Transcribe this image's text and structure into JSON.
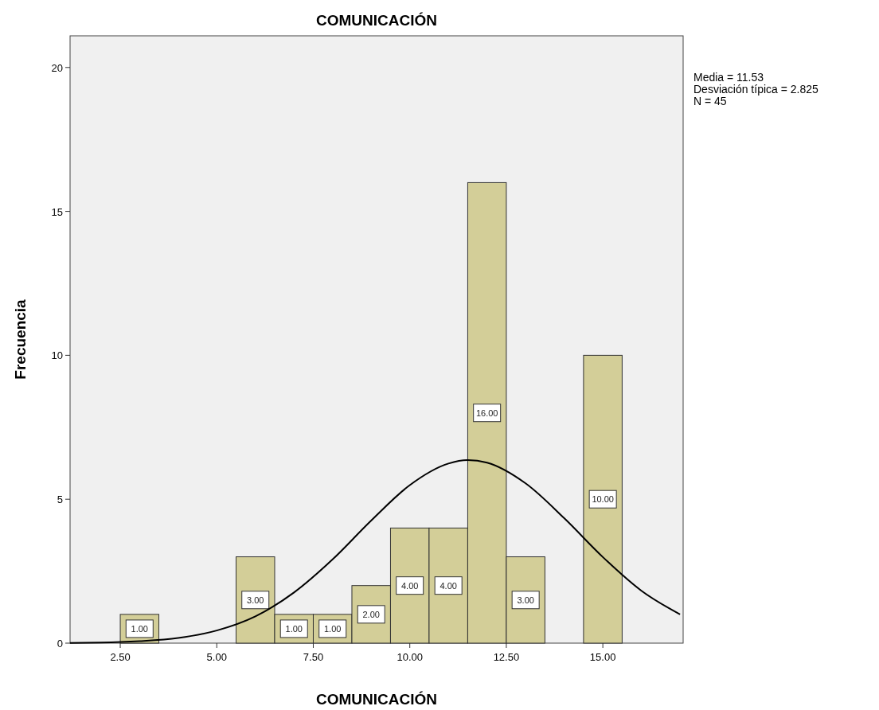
{
  "chart_data": {
    "type": "histogram",
    "title": "COMUNICACIÓN",
    "xlabel": "COMUNICACIÓN",
    "ylabel": "Frecuencia",
    "bins": [
      2.5,
      3.5,
      4.5,
      5.5,
      6.5,
      7.5,
      8.5,
      9.5,
      10.5,
      11.5,
      12.5,
      13.5,
      14.5,
      15.5
    ],
    "values": [
      1,
      0,
      0,
      3,
      1,
      1,
      2,
      4,
      4,
      16,
      3,
      0,
      10
    ],
    "value_labels": [
      "1.00",
      null,
      null,
      "3.00",
      "1.00",
      "1.00",
      "2.00",
      "4.00",
      "4.00",
      "16.00",
      "3.00",
      null,
      "10.00"
    ],
    "color": "#d3ce98",
    "series": [
      {
        "type": "line",
        "color": "#000000",
        "x": [
          1.2,
          2,
          3,
          4,
          5,
          6,
          7,
          8,
          9,
          10,
          11,
          11.5,
          12,
          13,
          14,
          15,
          16,
          17
        ],
        "values": [
          0.01,
          0.02,
          0.07,
          0.18,
          0.44,
          0.93,
          1.76,
          2.91,
          4.26,
          5.49,
          6.24,
          6.36,
          6.27,
          5.55,
          4.34,
          2.99,
          1.82,
          1.0
        ]
      }
    ],
    "xlim": [
      1.2,
      17.08
    ],
    "xticks": [
      {
        "value": 2.5,
        "label": "2.50"
      },
      {
        "value": 5,
        "label": "5.00"
      },
      {
        "value": 7.5,
        "label": "7.50"
      },
      {
        "value": 10,
        "label": "10.00"
      },
      {
        "value": 12.5,
        "label": "12.50"
      },
      {
        "value": 15,
        "label": "15.00"
      }
    ],
    "ylim": [
      0,
      21.1
    ],
    "yticks": [
      0,
      5,
      10,
      15,
      20
    ],
    "grid": false,
    "annotations": [
      "Media = 11.53",
      "Desviación típica = 2.825",
      "N = 45"
    ]
  }
}
